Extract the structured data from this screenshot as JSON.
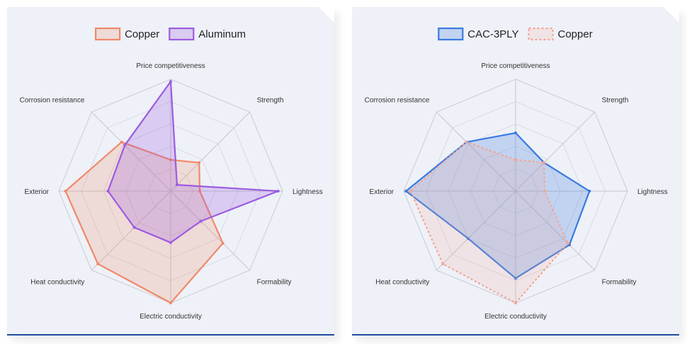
{
  "chart_data": [
    {
      "type": "radar",
      "axes": [
        "Price competitiveness",
        "Strength",
        "Lightness",
        "Formability",
        "Electric conductivity",
        "Heat conductivity",
        "Exterior",
        "Corrosion resistance"
      ],
      "rmax": 5,
      "legend": "top",
      "series": [
        {
          "name": "Copper",
          "values": [
            1.4,
            1.8,
            1.3,
            3.3,
            5.0,
            4.6,
            4.7,
            3.1
          ],
          "color": "#f0896a",
          "fill": "rgba(240,137,106,0.22)",
          "dashed": false
        },
        {
          "name": "Aluminum",
          "values": [
            4.9,
            0.4,
            4.8,
            1.9,
            2.3,
            2.3,
            2.8,
            2.9
          ],
          "color": "#9c5be0",
          "fill": "rgba(156,91,224,0.25)",
          "dashed": false
        }
      ]
    },
    {
      "type": "radar",
      "axes": [
        "Price competitiveness",
        "Strength",
        "Lightness",
        "Formability",
        "Electric conductivity",
        "Heat conductivity",
        "Exterior",
        "Corrosion resistance"
      ],
      "rmax": 5,
      "legend": "top",
      "series": [
        {
          "name": "CAC-3PLY",
          "values": [
            2.6,
            1.8,
            3.3,
            3.4,
            3.9,
            3.0,
            4.9,
            3.1
          ],
          "color": "#3a7ae0",
          "fill": "rgba(58,122,224,0.25)",
          "dashed": false
        },
        {
          "name": "Copper",
          "values": [
            1.4,
            1.8,
            1.3,
            3.3,
            5.0,
            4.6,
            4.7,
            3.1
          ],
          "color": "#f4a596",
          "fill": "rgba(244,165,150,0.18)",
          "dashed": true
        }
      ]
    }
  ]
}
